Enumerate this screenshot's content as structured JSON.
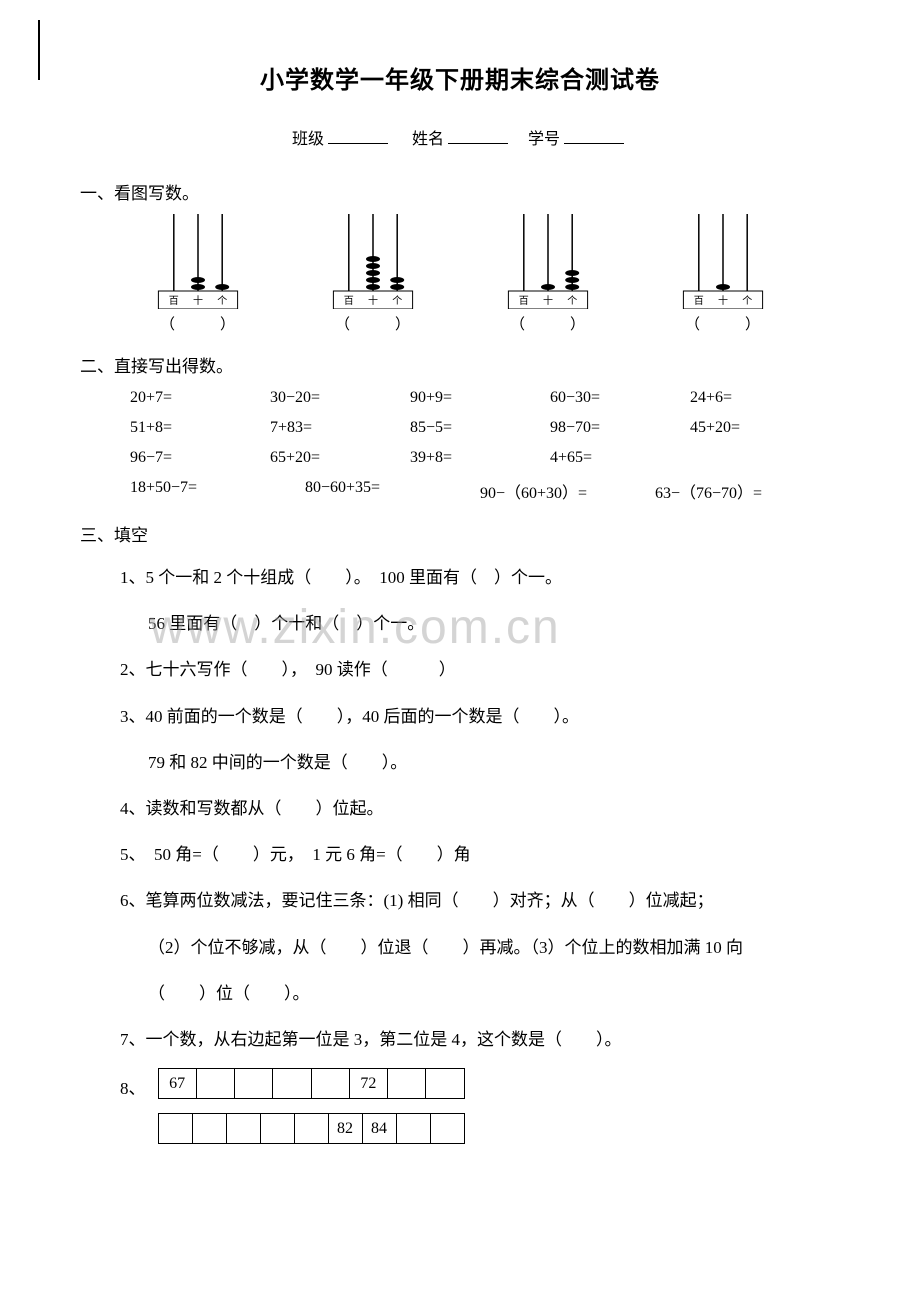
{
  "title": "小学数学一年级下册期末综合测试卷",
  "header_fields": {
    "class": "班级",
    "name": "姓名",
    "id": "学号"
  },
  "watermark": "www.zixin.com.cn",
  "section1": {
    "title": "一、看图写数。",
    "place_labels": [
      "百",
      "十",
      "个"
    ],
    "abaci": [
      {
        "beads": [
          0,
          2,
          1
        ],
        "caption_left": "（",
        "caption_right": "）"
      },
      {
        "beads": [
          0,
          5,
          2
        ],
        "caption_left": "（",
        "caption_right": "）"
      },
      {
        "beads": [
          0,
          1,
          3
        ],
        "caption_left": "（",
        "caption_right": "）"
      },
      {
        "beads": [
          0,
          1,
          0
        ],
        "caption_left": "（",
        "caption_right": "）"
      }
    ],
    "abacus_style": {
      "rod_color": "#000000",
      "bead_color": "#000000",
      "base_color": "#000000",
      "bead_rx": 7,
      "bead_ry": 3,
      "width": 110,
      "height": 95
    }
  },
  "section2": {
    "title": "二、直接写出得数。",
    "rows": [
      [
        "20+7=",
        "30−20=",
        "90+9=",
        "60−30=",
        "24+6="
      ],
      [
        "51+8=",
        "7+83=",
        "85−5=",
        "98−70=",
        "45+20="
      ],
      [
        "96−7=",
        "65+20=",
        "39+8=",
        "4+65=",
        ""
      ]
    ],
    "row_wide": [
      "18+50−7=",
      "80−60+35=",
      "90−（60+30）=",
      "63−（76−70）="
    ]
  },
  "section3": {
    "title": "三、填空",
    "items": {
      "q1a": "1、5 个一和 2 个十组成（　　）。　100 里面有（　）个一。",
      "q1b": "56 里面有（　）个十和（　）个一。",
      "q2": "2、七十六写作（　　），　90 读作（　　　）",
      "q3a": "3、40 前面的一个数是（　　），40 后面的一个数是（　　）。",
      "q3b": "79 和 82 中间的一个数是（　　）。",
      "q4": "4、读数和写数都从（　　）位起。",
      "q5": "5、　50 角=（　　）元，　1 元 6 角=（　　）角",
      "q6a": "6、笔算两位数减法，要记住三条：(1) 相同（　　）对齐；从（　　）位减起；",
      "q6b": "（2）个位不够减，从（　　）位退（　　）再减。（3）个位上的数相加满 10 向",
      "q6c": "（　　）位（　　）。",
      "q7": "7、一个数，从右边起第一位是 3，第二位是 4，这个数是（　　）。",
      "q8_label": "8、",
      "q8_row1": [
        "67",
        "",
        "",
        "",
        "",
        "72",
        "",
        ""
      ],
      "q8_row2": [
        "",
        "",
        "",
        "",
        "",
        "82",
        "84",
        "",
        ""
      ]
    }
  }
}
